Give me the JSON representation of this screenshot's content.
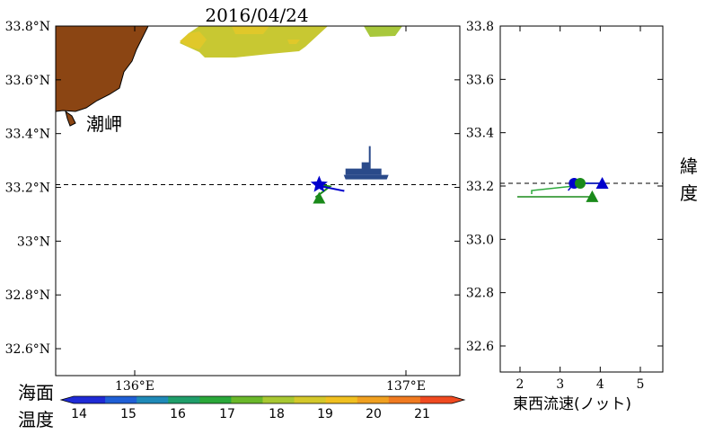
{
  "chart_data": [
    {
      "type": "map",
      "title": "2016/04/24",
      "xlim": [
        135.7,
        137.2
      ],
      "ylim": [
        32.5,
        33.8
      ],
      "x_ticks": [
        {
          "v": 136.0,
          "label": "136°E"
        },
        {
          "v": 137.0,
          "label": "137°E"
        }
      ],
      "y_ticks": [
        {
          "v": 33.8,
          "label": "33.8°N"
        },
        {
          "v": 33.6,
          "label": "33.6°N"
        },
        {
          "v": 33.4,
          "label": "33.4°N"
        },
        {
          "v": 33.2,
          "label": "33.2°N"
        },
        {
          "v": 33.0,
          "label": "33°N"
        },
        {
          "v": 32.8,
          "label": "32.8°N"
        },
        {
          "v": 32.6,
          "label": "32.6°N"
        }
      ],
      "reference_latitude": 33.21,
      "place_label": "潮岬",
      "land_color": "#8B4513",
      "sst_patches_color": [
        "#c8c832",
        "#e0c82a",
        "#a8c83c"
      ],
      "ship_position": {
        "lon": 136.68,
        "lat": 33.21
      },
      "star_position": {
        "lon": 136.68,
        "lat": 33.21
      },
      "triangle_position": {
        "lon": 136.68,
        "lat": 33.16
      },
      "vessel_icon_position": {
        "lon": 136.85,
        "lat": 33.26
      }
    },
    {
      "type": "scatter",
      "xlabel": "東西流速(ノット)",
      "ylabel": "緯度",
      "xlim": [
        1.5,
        5.5
      ],
      "ylim": [
        32.5,
        33.8
      ],
      "x_ticks": [
        2,
        3,
        4,
        5
      ],
      "y_ticks": [
        {
          "v": 33.8,
          "label": "33.8"
        },
        {
          "v": 33.6,
          "label": "33.6"
        },
        {
          "v": 33.4,
          "label": "33.4"
        },
        {
          "v": 33.2,
          "label": "33.2"
        },
        {
          "v": 33.0,
          "label": "33.0"
        },
        {
          "v": 32.8,
          "label": "32.8"
        },
        {
          "v": 32.6,
          "label": "32.6"
        }
      ],
      "reference_latitude": 33.21,
      "series": [
        {
          "color": "#0000cc",
          "markers": [
            {
              "x": 3.35,
              "y": 33.21,
              "shape": "circle"
            },
            {
              "x": 4.05,
              "y": 33.21,
              "shape": "triangle"
            }
          ]
        },
        {
          "color": "#1a8a1a",
          "markers": [
            {
              "x": 3.5,
              "y": 33.21,
              "shape": "circle"
            },
            {
              "x": 3.8,
              "y": 33.16,
              "shape": "triangle"
            }
          ]
        }
      ]
    }
  ],
  "colorbar": {
    "label": "海面\n温度",
    "ticks": [
      "14",
      "15",
      "16",
      "17",
      "18",
      "19",
      "20",
      "21"
    ],
    "colors": [
      "#1f2bd6",
      "#1f5fd6",
      "#1f8ab8",
      "#1f9e6a",
      "#2aa83a",
      "#6ab82a",
      "#a8c832",
      "#d4c82a",
      "#f0c020",
      "#f0a020",
      "#f07a20",
      "#f04a20"
    ]
  }
}
